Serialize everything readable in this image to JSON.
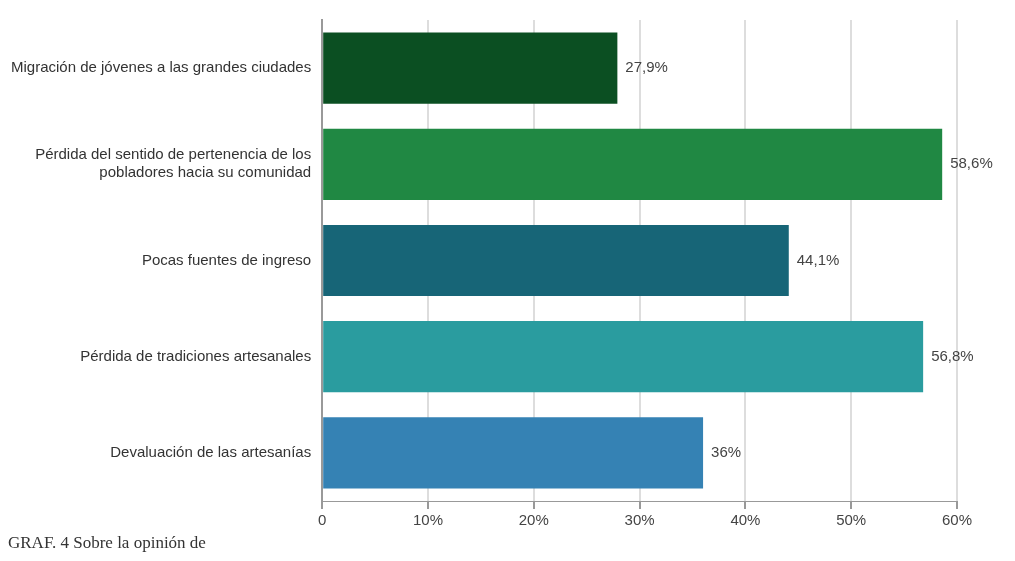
{
  "chart_data": {
    "type": "bar",
    "orientation": "horizontal",
    "categories": [
      "Migración de jóvenes a las grandes ciudades",
      "Pérdida del sentido de pertenencia de los pobladores hacia su comunidad",
      "Pocas fuentes de ingreso",
      "Pérdida de tradiciones artesanales",
      "Devaluación de las artesanías"
    ],
    "values": [
      27.9,
      58.6,
      44.1,
      56.8,
      36
    ],
    "colors": [
      "#0b4f22",
      "#208843",
      "#176577",
      "#2a9c9f",
      "#3582b4"
    ],
    "value_labels": [
      "27,9%",
      "58,6%",
      "44,1%",
      "56,8%",
      "36%"
    ],
    "xlim": [
      0,
      60
    ],
    "xticks": [
      0,
      {
        "value": 10,
        "label": "10%"
      },
      {
        "value": 20,
        "label": "20%"
      },
      {
        "value": 30,
        "label": "30%"
      },
      {
        "value": 40,
        "label": "40%"
      },
      {
        "value": 50,
        "label": "50%"
      },
      {
        "value": 60,
        "label": "60%"
      }
    ],
    "grid": "x",
    "legend": false,
    "annotations": [
      "GRAF. 4  Sobre la opinión de"
    ]
  }
}
